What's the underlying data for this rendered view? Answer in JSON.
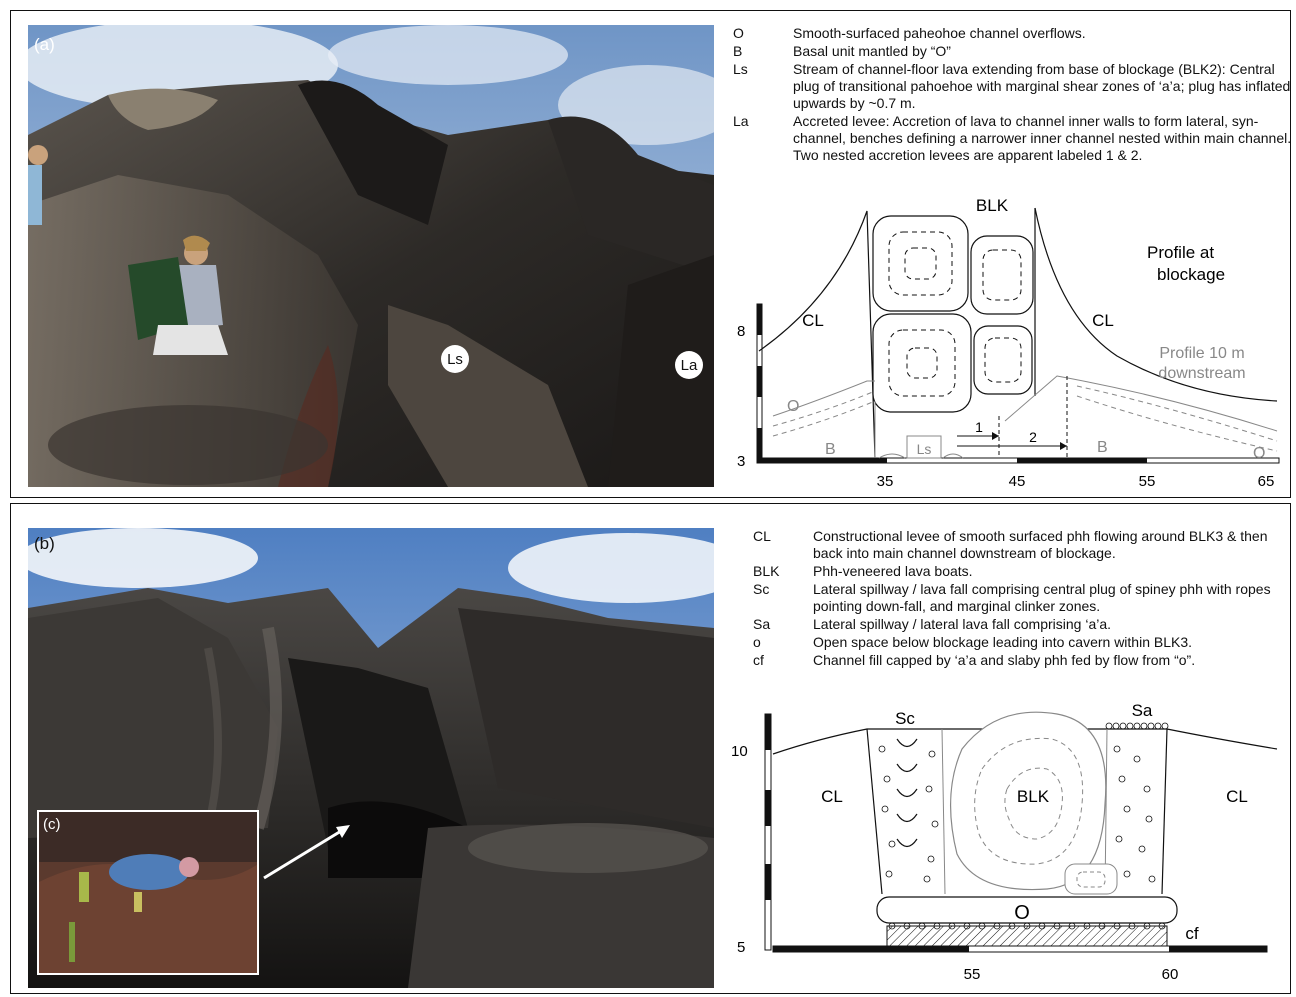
{
  "panel_a": {
    "label": "(a)",
    "photo_labels": {
      "ls": "Ls",
      "la": "La"
    },
    "legend": [
      {
        "key": "O",
        "desc": "Smooth-surfaced paheohoe channel overflows."
      },
      {
        "key": "B",
        "desc": "Basal unit mantled by “O”"
      },
      {
        "key": "Ls",
        "desc": "Stream of channel-floor lava extending from base of blockage (BLK2): Central plug of transitional pahoehoe with marginal shear zones of ‘a’a; plug has inflated upwards by ~0.7 m."
      },
      {
        "key": "La",
        "desc": "Accreted levee: Accretion of lava to channel inner walls to form lateral, syn-channel, benches defining a narrower inner channel nested within main channel. Two nested accretion levees are apparent labeled 1 & 2."
      }
    ],
    "profile": {
      "blk": "BLK",
      "cl_left": "CL",
      "cl_right": "CL",
      "title": "Profile at blockage",
      "downstream": "Profile 10 m downstream",
      "o_left": "O",
      "o_right": "O",
      "b_left": "B",
      "b_right": "B",
      "ls": "Ls",
      "levee1": "1",
      "levee2": "2",
      "y_ticks": [
        "8",
        "3"
      ],
      "x_ticks": [
        "35",
        "45",
        "55",
        "65"
      ]
    }
  },
  "panel_b": {
    "label": "(b)",
    "inset_label": "(c)",
    "legend": [
      {
        "key": "CL",
        "desc": "Constructional levee of smooth surfaced phh flowing around BLK3 & then back into main channel downstream of blockage."
      },
      {
        "key": "BLK",
        "desc": "Phh-veneered lava boats."
      },
      {
        "key": "Sc",
        "desc": "Lateral spillway / lava fall comprising central plug of spiney phh with ropes pointing down-fall, and marginal clinker zones."
      },
      {
        "key": "Sa",
        "desc": "Lateral spillway / lateral lava fall comprising ‘a’a."
      },
      {
        "key": "o",
        "desc": "Open space below blockage leading into cavern within BLK3."
      },
      {
        "key": "cf",
        "desc": "Channel fill capped by ‘a’a and slaby phh fed by flow from “o”."
      }
    ],
    "profile": {
      "sc": "Sc",
      "sa": "Sa",
      "blk": "BLK",
      "cl_left": "CL",
      "cl_right": "CL",
      "o": "O",
      "cf": "cf",
      "y_ticks": [
        "10",
        "5"
      ],
      "x_ticks": [
        "55",
        "60"
      ]
    }
  }
}
